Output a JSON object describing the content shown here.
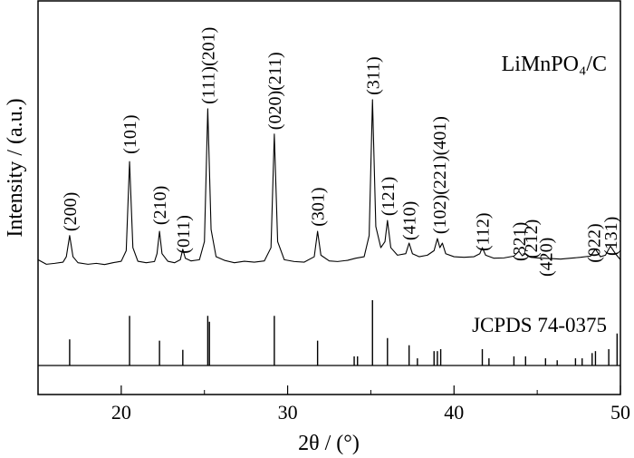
{
  "chart_data": {
    "type": "line",
    "xlabel": "2θ / (°)",
    "ylabel": "Intensity / (a.u.)",
    "xlim": [
      15,
      50
    ],
    "xticks": [
      20,
      30,
      40,
      50
    ],
    "xminorticks": [
      25,
      35,
      45
    ],
    "ylim": [
      0,
      100
    ],
    "series": [
      {
        "name": "LiMnPO₄/C",
        "color": "#000000",
        "x": [
          15,
          15.5,
          16,
          16.5,
          16.7,
          16.9,
          17.1,
          17.4,
          18,
          18.5,
          19,
          19.5,
          20,
          20.3,
          20.5,
          20.7,
          21,
          21.5,
          22,
          22.15,
          22.3,
          22.45,
          22.8,
          23.2,
          23.55,
          23.7,
          23.85,
          24.2,
          24.7,
          25.0,
          25.2,
          25.4,
          25.7,
          26.2,
          26.8,
          27.4,
          28,
          28.6,
          29.0,
          29.2,
          29.4,
          29.8,
          30.4,
          31,
          31.6,
          31.8,
          32,
          32.5,
          33,
          33.6,
          34.1,
          34.6,
          34.9,
          35.1,
          35.3,
          35.6,
          35.85,
          36.0,
          36.2,
          36.6,
          37.1,
          37.3,
          37.5,
          37.9,
          38.4,
          38.8,
          39.0,
          39.15,
          39.3,
          39.5,
          40,
          40.6,
          41.2,
          41.55,
          41.7,
          41.9,
          42.4,
          43,
          43.6,
          43.9,
          44.1,
          44.3,
          44.6,
          45.2,
          45.8,
          46.4,
          47,
          47.6,
          48.2,
          48.5,
          48.8,
          49.1,
          49.4,
          49.7,
          50
        ],
        "values": [
          14,
          12.5,
          12.8,
          13.2,
          15,
          22,
          15,
          13,
          12.5,
          12.8,
          12.4,
          13,
          13.5,
          17,
          46.5,
          18,
          13.5,
          13,
          13.4,
          16,
          23.4,
          16,
          13.5,
          13,
          14,
          17.5,
          14.5,
          13.6,
          14,
          20,
          64,
          24,
          15,
          13.8,
          13,
          13.5,
          13.2,
          13.6,
          18,
          55.6,
          20,
          14,
          13.4,
          13.2,
          15,
          23.4,
          15.5,
          13.6,
          13.4,
          13.8,
          14.5,
          15,
          22,
          67,
          25,
          18,
          20,
          27,
          18,
          15.5,
          16,
          19.5,
          16,
          15,
          15.5,
          17,
          21,
          18,
          19.5,
          16,
          15,
          14.8,
          15,
          16,
          18,
          15.5,
          14.5,
          14.6,
          15.2,
          16.8,
          15.3,
          16,
          14.8,
          14.5,
          14.4,
          14.2,
          14.5,
          14.8,
          15.2,
          17.5,
          15,
          15.5,
          18.5,
          16,
          14
        ]
      }
    ],
    "reference": {
      "name": "JCPDS 74-0375",
      "color": "#000000",
      "ylim": [
        0,
        100
      ],
      "x": [
        16.9,
        20.5,
        22.3,
        23.7,
        25.2,
        25.3,
        29.2,
        31.8,
        34.0,
        34.2,
        35.1,
        36.0,
        37.3,
        37.8,
        38.8,
        39.0,
        39.2,
        41.7,
        42.1,
        43.6,
        44.3,
        45.5,
        46.2,
        47.3,
        47.7,
        48.3,
        48.5,
        49.3,
        49.8
      ],
      "values": [
        40,
        76,
        38,
        24,
        76,
        67,
        76,
        38,
        14,
        14,
        100,
        42,
        31,
        11,
        22,
        22,
        25,
        25,
        11,
        14,
        14,
        11,
        8,
        11,
        11,
        19,
        22,
        25,
        49
      ]
    },
    "annotations": [
      {
        "text": "(200)",
        "x": 16.9,
        "y": 23.4
      },
      {
        "text": "(101)",
        "x": 20.5,
        "y": 49
      },
      {
        "text": "(210)",
        "x": 22.3,
        "y": 25.5
      },
      {
        "text": "(011)",
        "x": 23.7,
        "y": 16
      },
      {
        "text": "(111)(201)",
        "x": 25.2,
        "y": 65.5
      },
      {
        "text": "(020)(211)",
        "x": 29.2,
        "y": 57
      },
      {
        "text": "(301)",
        "x": 31.8,
        "y": 25
      },
      {
        "text": "(311)",
        "x": 35.1,
        "y": 68.5
      },
      {
        "text": "(121)",
        "x": 36.0,
        "y": 28.5
      },
      {
        "text": "(410)",
        "x": 37.3,
        "y": 20.4
      },
      {
        "text": "(102)(221)(401)",
        "x": 39.1,
        "y": 22.5
      },
      {
        "text": "(112)",
        "x": 41.7,
        "y": 16.8
      },
      {
        "text": "(321)",
        "x": 43.9,
        "y": 13.5
      },
      {
        "text": "(212)",
        "x": 44.6,
        "y": 14.4
      },
      {
        "text": "(420)",
        "x": 45.5,
        "y": 8.4
      },
      {
        "text": "(022)",
        "x": 48.4,
        "y": 13
      },
      {
        "text": "(131)",
        "x": 49.4,
        "y": 15.3
      }
    ]
  }
}
